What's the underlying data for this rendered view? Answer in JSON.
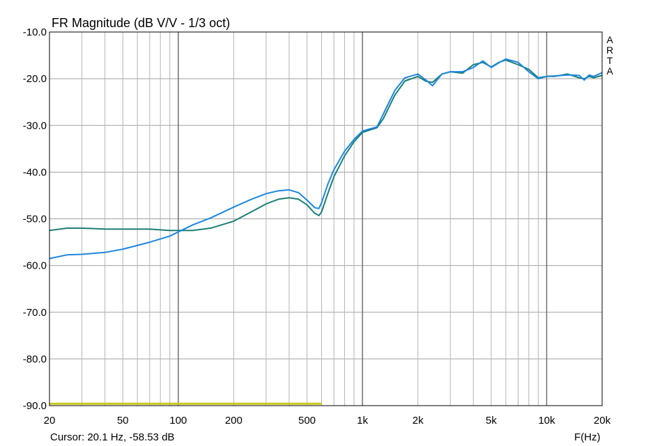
{
  "chart_data": {
    "type": "line",
    "title": "FR Magnitude (dB V/V - 1/3 oct)",
    "xlabel": "F(Hz)",
    "ylabel": "",
    "x_scale": "log",
    "xlim": [
      20,
      20000
    ],
    "ylim": [
      -90,
      -10
    ],
    "grid": true,
    "y_ticks": [
      -10,
      -20,
      -30,
      -40,
      -50,
      -60,
      -70,
      -80,
      -90
    ],
    "y_tick_labels": [
      "-10.0",
      "-20.0",
      "-30.0",
      "-40.0",
      "-50.0",
      "-60.0",
      "-70.0",
      "-80.0",
      "-90.0"
    ],
    "x_ticks": [
      20,
      50,
      100,
      200,
      500,
      1000,
      2000,
      5000,
      10000,
      20000
    ],
    "x_tick_labels": [
      "20",
      "50",
      "100",
      "200",
      "500",
      "1k",
      "2k",
      "5k",
      "10k",
      "20k"
    ],
    "cursor_text": "Cursor: 20.1 Hz, -58.53 dB",
    "watermark": [
      "A",
      "R",
      "T",
      "A"
    ],
    "series": [
      {
        "color": "#1a7f74",
        "x": [
          20,
          25,
          30,
          40,
          50,
          70,
          90,
          100,
          120,
          150,
          200,
          250,
          300,
          350,
          400,
          450,
          500,
          550,
          580,
          600,
          650,
          700,
          800,
          900,
          1000,
          1200,
          1300,
          1500,
          1700,
          2000,
          2200,
          2400,
          2700,
          3000,
          3500,
          4000,
          4500,
          5000,
          5500,
          6000,
          7000,
          8000,
          9000,
          10000,
          11000,
          13000,
          15000,
          16000,
          17000,
          18000,
          20000
        ],
        "y": [
          -52.5,
          -52.0,
          -52.0,
          -52.2,
          -52.2,
          -52.2,
          -52.5,
          -52.5,
          -52.5,
          -52.0,
          -50.5,
          -48.5,
          -46.8,
          -45.8,
          -45.5,
          -45.8,
          -47.0,
          -48.8,
          -49.3,
          -48.5,
          -44.5,
          -41.0,
          -36.5,
          -33.5,
          -31.5,
          -30.5,
          -28.5,
          -23.5,
          -20.5,
          -19.5,
          -20.5,
          -20.8,
          -19.0,
          -18.5,
          -18.8,
          -17.0,
          -16.5,
          -17.5,
          -16.5,
          -16.0,
          -17.0,
          -18.0,
          -19.8,
          -19.5,
          -19.5,
          -19.0,
          -19.8,
          -20.0,
          -19.5,
          -19.8,
          -19.3
        ]
      },
      {
        "color": "#1c86e0",
        "x": [
          20,
          25,
          30,
          40,
          50,
          70,
          90,
          100,
          120,
          150,
          200,
          250,
          300,
          350,
          400,
          450,
          500,
          550,
          580,
          600,
          650,
          700,
          800,
          900,
          1000,
          1200,
          1300,
          1500,
          1700,
          2000,
          2200,
          2400,
          2700,
          3000,
          3500,
          4000,
          4500,
          5000,
          5500,
          6000,
          7000,
          8000,
          9000,
          10000,
          11000,
          13000,
          15000,
          16000,
          17000,
          18000,
          20000
        ],
        "y": [
          -58.5,
          -57.7,
          -57.6,
          -57.2,
          -56.5,
          -55.0,
          -53.7,
          -52.8,
          -51.3,
          -49.8,
          -47.5,
          -45.8,
          -44.6,
          -44.0,
          -43.8,
          -44.4,
          -46.0,
          -47.6,
          -47.8,
          -46.5,
          -42.5,
          -39.5,
          -35.5,
          -33.0,
          -31.2,
          -30.3,
          -27.5,
          -22.5,
          -19.8,
          -19.0,
          -20.2,
          -21.5,
          -19.0,
          -18.5,
          -18.5,
          -17.6,
          -16.2,
          -17.6,
          -16.6,
          -15.8,
          -16.5,
          -18.5,
          -20.0,
          -19.5,
          -19.4,
          -19.2,
          -19.3,
          -20.3,
          -19.2,
          -19.5,
          -18.7
        ]
      },
      {
        "color": "#c8c81e",
        "x": [
          20,
          600
        ],
        "y": [
          -89.6,
          -89.6
        ]
      }
    ]
  }
}
